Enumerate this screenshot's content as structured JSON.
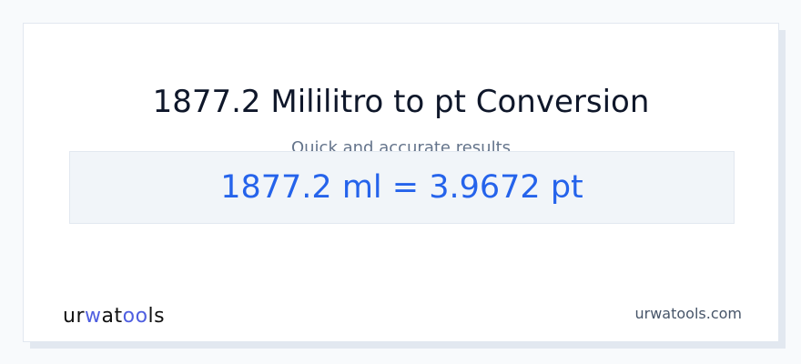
{
  "header": {
    "title": "1877.2 Mililitro to pt Conversion",
    "subtitle": "Quick and accurate results"
  },
  "result": {
    "text": "1877.2 ml = 3.9672 pt"
  },
  "footer": {
    "logo_text": "urwatools",
    "site": "urwatools.com"
  },
  "colors": {
    "accent": "#2563eb",
    "logo_accent": "#4f5fe0"
  }
}
